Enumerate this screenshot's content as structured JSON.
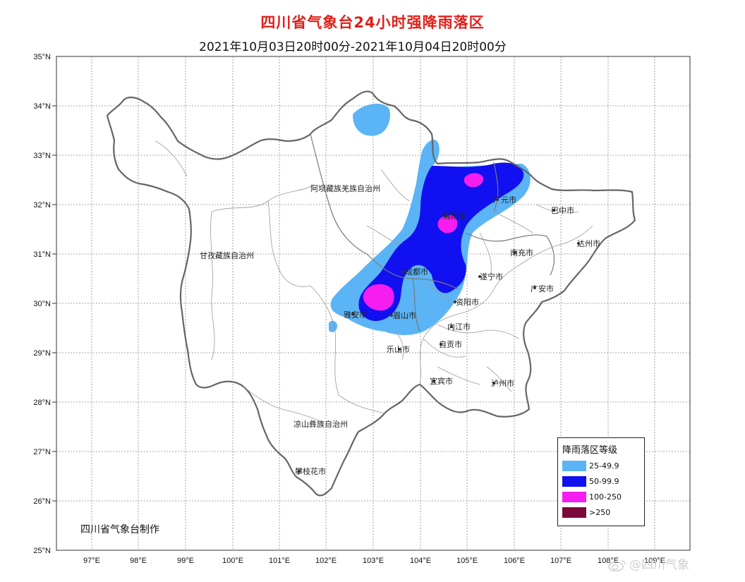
{
  "title": "四川省气象台24小时强降雨落区",
  "subtitle": "2021年10月03日20时00分-2021年10月04日20时00分",
  "lat_labels": [
    "35°N",
    "34°N",
    "33°N",
    "32°N",
    "31°N",
    "30°N",
    "29°N",
    "28°N",
    "27°N",
    "26°N",
    "25°N"
  ],
  "lon_labels": [
    "97°E",
    "98°E",
    "99°E",
    "100°E",
    "101°E",
    "102°E",
    "103°E",
    "104°E",
    "105°E",
    "106°E",
    "107°E",
    "108°E",
    "109°E"
  ],
  "places": {
    "aba": "阿坝藏族羌族自治州",
    "ganzi": "甘孜藏族自治州",
    "liangshan": "凉山彝族自治州",
    "panzhihua": "攀枝花市",
    "chengdu": "成都市",
    "yaan": "雅安市",
    "meishan": "眉山市",
    "leshan": "乐山市",
    "ziyang": "资阳市",
    "neijiang": "内江市",
    "zigong": "自贡市",
    "yibin": "宜宾市",
    "luzhou": "泸州市",
    "suining": "遂宁市",
    "nanchong": "南充市",
    "guangan": "广安市",
    "dazhou": "达州市",
    "bazhong": "巴中市",
    "guangyuan": "广元市",
    "mianyang": "绵阳市"
  },
  "legend": {
    "title": "降雨落区等级",
    "items": [
      {
        "label": "25-49.9",
        "color": "#5bb4f5"
      },
      {
        "label": "50-99.9",
        "color": "#1010f0"
      },
      {
        "label": "100-250",
        "color": "#f51df0"
      },
      {
        "label": ">250",
        "color": "#7a0a3a"
      }
    ]
  },
  "maker": "四川省气象台制作",
  "watermark": "@四川气象"
}
